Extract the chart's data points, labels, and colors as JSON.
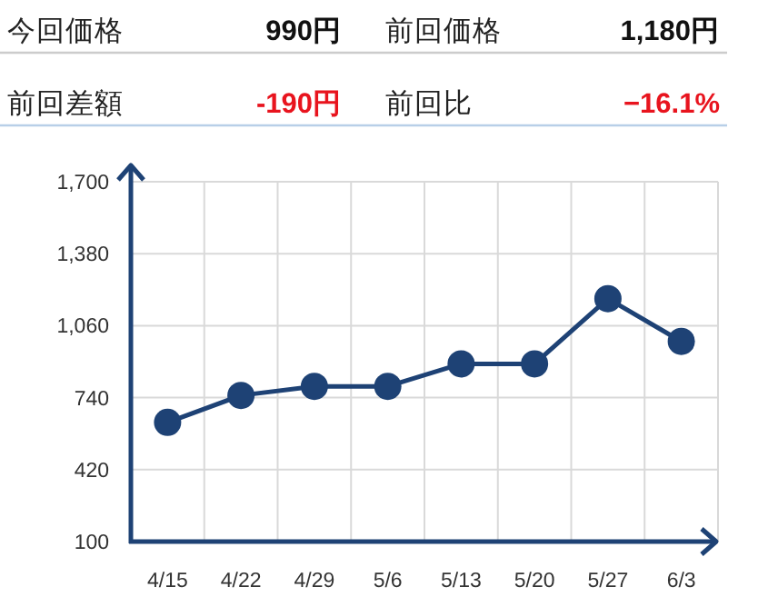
{
  "chart_data": [
    {
      "type": "other",
      "annotations": [
        "今回価格",
        "990円",
        "前回価格",
        "1,180円",
        "前回差額",
        "-190円",
        "前回比",
        "−16.1%"
      ],
      "colors": [
        "#222222",
        "#111111",
        "#222222",
        "#111111",
        "#222222",
        "#e8141e",
        "#222222",
        "#e8141e"
      ]
    },
    {
      "type": "line",
      "categories": [
        "4/15",
        "4/22",
        "4/29",
        "5/6",
        "5/13",
        "5/20",
        "5/27",
        "6/3"
      ],
      "series": [
        {
          "color": "#1e4275",
          "values": [
            630,
            750,
            790,
            790,
            890,
            890,
            1180,
            990
          ]
        }
      ],
      "ylim": [
        100,
        1700
      ],
      "yticks": [
        100,
        420,
        740,
        {
          "value": 1060,
          "label": "1,060"
        },
        {
          "value": 1380,
          "label": "1,380"
        },
        {
          "value": 1700,
          "label": "1,700"
        }
      ],
      "grid": true,
      "marker": "circle",
      "line_style": "solid"
    }
  ]
}
